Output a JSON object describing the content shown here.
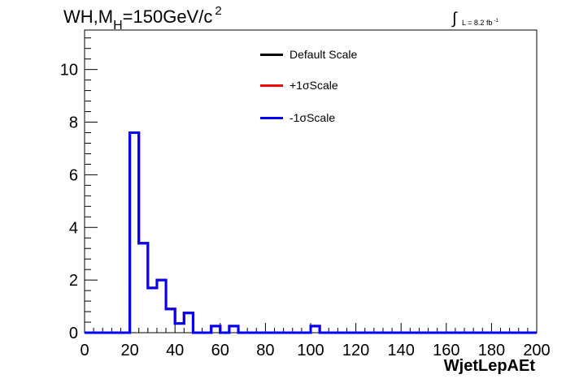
{
  "title": {
    "main": "WH,M",
    "sub": "H",
    "rest": "=150GeV/c",
    "sup": "2"
  },
  "lumi": {
    "integral": "∫",
    "text": "L = 8.2 fb",
    "sup": "-1"
  },
  "chart_data": {
    "type": "line",
    "xlabel": "WjetLepAEt",
    "ylabel": "",
    "xlim": [
      0,
      200
    ],
    "ylim": [
      0,
      11.5
    ],
    "x_ticks": [
      0,
      20,
      40,
      60,
      80,
      100,
      120,
      140,
      160,
      180,
      200
    ],
    "y_ticks": [
      0,
      2,
      4,
      6,
      8,
      10
    ],
    "bin_edges": [
      0,
      4,
      8,
      12,
      16,
      20,
      24,
      28,
      32,
      36,
      40,
      44,
      48,
      52,
      56,
      60,
      64,
      68,
      72,
      76,
      80,
      84,
      88,
      92,
      96,
      100,
      104,
      108,
      112,
      116,
      120,
      124,
      128,
      132,
      136,
      140,
      144,
      148,
      152,
      156,
      160,
      164,
      168,
      172,
      176,
      180,
      184,
      188,
      192,
      196,
      200
    ],
    "series": [
      {
        "name": "Default Scale",
        "color": "#000000",
        "values": [
          0,
          0,
          0,
          0,
          0,
          7.6,
          3.4,
          1.7,
          2.0,
          0.9,
          0.35,
          0.75,
          0,
          0,
          0.25,
          0,
          0.25,
          0,
          0,
          0,
          0,
          0,
          0,
          0,
          0,
          0.25,
          0,
          0,
          0,
          0,
          0,
          0,
          0,
          0,
          0,
          0,
          0,
          0,
          0,
          0,
          0,
          0,
          0,
          0,
          0,
          0,
          0,
          0,
          0,
          0
        ]
      },
      {
        "name": "+1σScale",
        "color": "#ff0000",
        "values": [
          0,
          0,
          0,
          0,
          0,
          7.6,
          3.4,
          1.7,
          2.0,
          0.9,
          0.35,
          0.75,
          0,
          0,
          0.25,
          0,
          0.25,
          0,
          0,
          0,
          0,
          0,
          0,
          0,
          0,
          0.25,
          0,
          0,
          0,
          0,
          0,
          0,
          0,
          0,
          0,
          0,
          0,
          0,
          0,
          0,
          0,
          0,
          0,
          0,
          0,
          0,
          0,
          0,
          0,
          0
        ]
      },
      {
        "name": "-1σScale",
        "color": "#0000ff",
        "values": [
          0,
          0,
          0,
          0,
          0,
          7.6,
          3.4,
          1.7,
          2.0,
          0.9,
          0.35,
          0.75,
          0,
          0,
          0.25,
          0,
          0.25,
          0,
          0,
          0,
          0,
          0,
          0,
          0,
          0,
          0.25,
          0,
          0,
          0,
          0,
          0,
          0,
          0,
          0,
          0,
          0,
          0,
          0,
          0,
          0,
          0,
          0,
          0,
          0,
          0,
          0,
          0,
          0,
          0,
          0
        ]
      }
    ],
    "legend_position": "top-center",
    "grid": false
  }
}
